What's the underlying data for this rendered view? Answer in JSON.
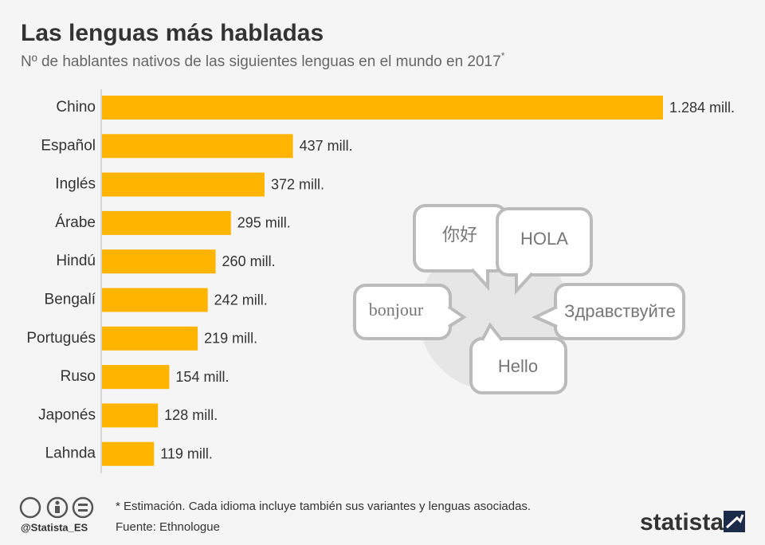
{
  "chart_data": {
    "type": "bar",
    "orientation": "horizontal",
    "title": "Las lenguas más habladas",
    "subtitle": "Nº de hablantes nativos de las siguientes lenguas en el mundo en 2017",
    "subtitle_mark": "*",
    "categories": [
      "Chino",
      "Español",
      "Inglés",
      "Árabe",
      "Hindú",
      "Bengalí",
      "Portugués",
      "Ruso",
      "Japonés",
      "Lahnda"
    ],
    "values": [
      1284,
      437,
      372,
      295,
      260,
      242,
      219,
      154,
      128,
      119
    ],
    "value_labels": [
      "1.284 mill.",
      "437 mill.",
      "372 mill.",
      "295 mill.",
      "260 mill.",
      "242 mill.",
      "219 mill.",
      "154 mill.",
      "128 mill.",
      "119 mill."
    ],
    "color": "#ffb400",
    "illustration": [
      "你好",
      "HOLA",
      "bonjour",
      "Здравствуйте",
      "Hello"
    ],
    "note": "* Estimación. Cada idioma incluye también sus variantes y lenguas asociadas.",
    "source": "Fuente: Ethnologue",
    "handle": "@Statista_ES",
    "brand": "statista"
  }
}
